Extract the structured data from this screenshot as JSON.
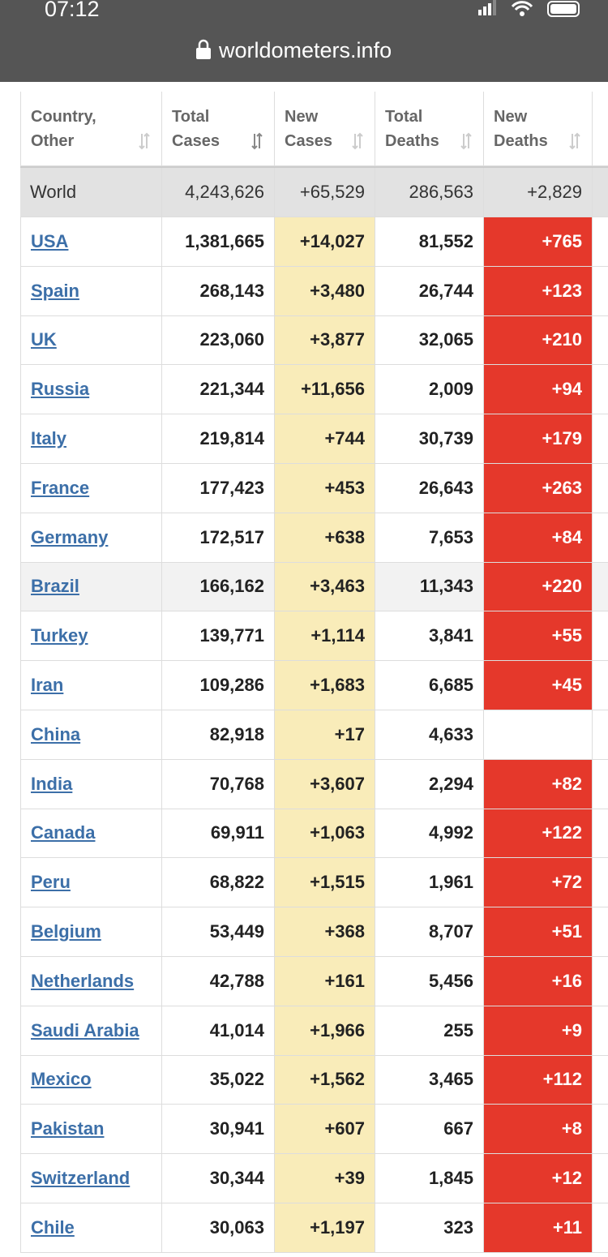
{
  "status_bar": {
    "time": "07:12",
    "url": "worldometers.info"
  },
  "table": {
    "headers": [
      "Country, Other",
      "Total Cases",
      "New Cases",
      "Total Deaths",
      "New Deaths"
    ],
    "world": [
      "World",
      "4,243,626",
      "+65,529",
      "286,563",
      "+2,829"
    ],
    "rows": [
      [
        "USA",
        "1,381,665",
        "+14,027",
        "81,552",
        "+765"
      ],
      [
        "Spain",
        "268,143",
        "+3,480",
        "26,744",
        "+123"
      ],
      [
        "UK",
        "223,060",
        "+3,877",
        "32,065",
        "+210"
      ],
      [
        "Russia",
        "221,344",
        "+11,656",
        "2,009",
        "+94"
      ],
      [
        "Italy",
        "219,814",
        "+744",
        "30,739",
        "+179"
      ],
      [
        "France",
        "177,423",
        "+453",
        "26,643",
        "+263"
      ],
      [
        "Germany",
        "172,517",
        "+638",
        "7,653",
        "+84"
      ],
      [
        "Brazil",
        "166,162",
        "+3,463",
        "11,343",
        "+220"
      ],
      [
        "Turkey",
        "139,771",
        "+1,114",
        "3,841",
        "+55"
      ],
      [
        "Iran",
        "109,286",
        "+1,683",
        "6,685",
        "+45"
      ],
      [
        "China",
        "82,918",
        "+17",
        "4,633",
        null
      ],
      [
        "India",
        "70,768",
        "+3,607",
        "2,294",
        "+82"
      ],
      [
        "Canada",
        "69,911",
        "+1,063",
        "4,992",
        "+122"
      ],
      [
        "Peru",
        "68,822",
        "+1,515",
        "1,961",
        "+72"
      ],
      [
        "Belgium",
        "53,449",
        "+368",
        "8,707",
        "+51"
      ],
      [
        "Netherlands",
        "42,788",
        "+161",
        "5,456",
        "+16"
      ],
      [
        "Saudi Arabia",
        "41,014",
        "+1,966",
        "255",
        "+9"
      ],
      [
        "Mexico",
        "35,022",
        "+1,562",
        "3,465",
        "+112"
      ],
      [
        "Pakistan",
        "30,941",
        "+607",
        "667",
        "+8"
      ],
      [
        "Switzerland",
        "30,344",
        "+39",
        "1,845",
        "+12"
      ],
      [
        "Chile",
        "30,063",
        "+1,197",
        "323",
        "+11"
      ]
    ]
  }
}
